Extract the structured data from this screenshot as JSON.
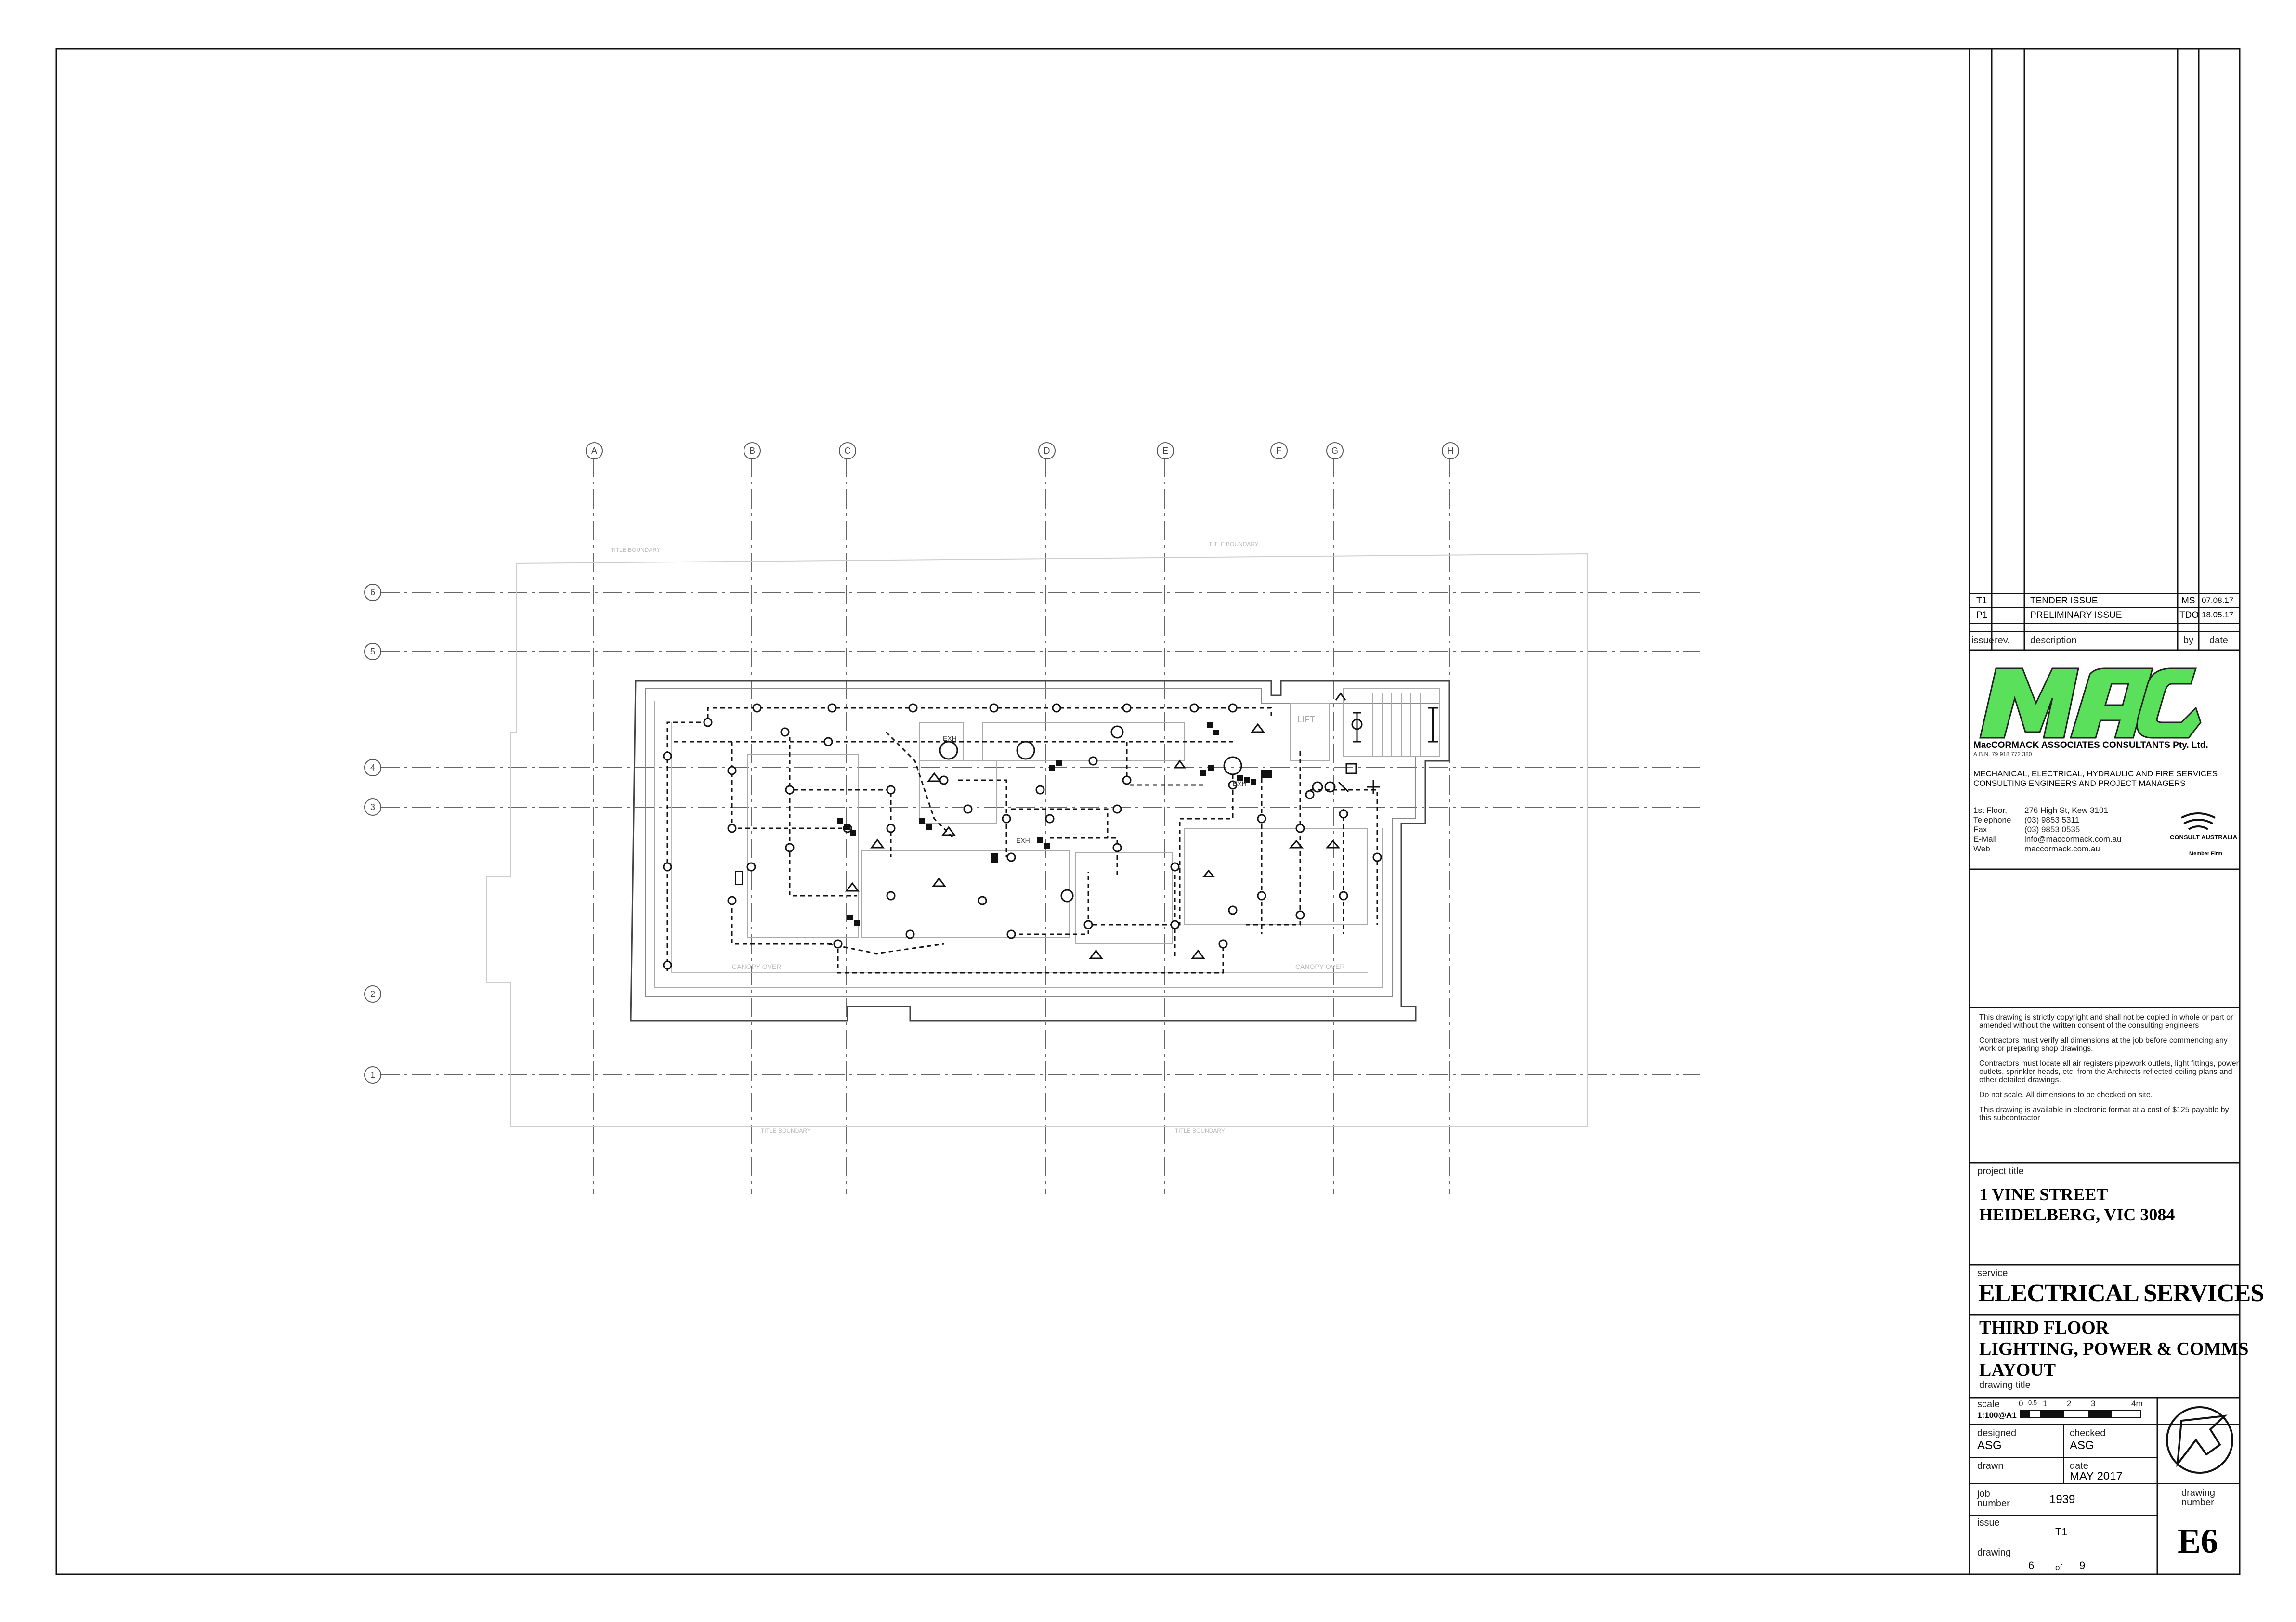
{
  "grid": {
    "columns": [
      "A",
      "B",
      "C",
      "D",
      "E",
      "F",
      "G",
      "H"
    ],
    "rows": [
      "6",
      "5",
      "4",
      "3",
      "2",
      "1"
    ]
  },
  "plan": {
    "boundary_label": "TITLE BOUNDARY",
    "room_labels": [
      "EXH",
      "EXH",
      "EXH",
      "LIFT",
      "CANOPY OVER",
      "CANOPY OVER"
    ]
  },
  "revisions": {
    "rows": [
      {
        "issue": "T1",
        "rev": "",
        "description": "TENDER ISSUE",
        "by": "MS",
        "date": "07.08.17"
      },
      {
        "issue": "P1",
        "rev": "",
        "description": "PRELIMINARY ISSUE",
        "by": "TDO",
        "date": "18.05.17"
      }
    ],
    "headers": {
      "issue": "issue",
      "rev": "rev.",
      "description": "description",
      "by": "by",
      "date": "date"
    }
  },
  "firm": {
    "logo_text": "mac",
    "name": "MacCORMACK ASSOCIATES CONSULTANTS Pty. Ltd.",
    "abn": "A.B.N. 79 918 772 380",
    "services_line1": "MECHANICAL, ELECTRICAL, HYDRAULIC AND FIRE SERVICES",
    "services_line2": "CONSULTING ENGINEERS AND PROJECT MANAGERS",
    "contacts": [
      {
        "label": "1st Floor,",
        "value": "276 High St, Kew 3101"
      },
      {
        "label": "Telephone",
        "value": "(03) 9853 5311"
      },
      {
        "label": "Fax",
        "value": "(03) 9853 0535"
      },
      {
        "label": "E-Mail",
        "value": "info@maccormack.com.au"
      },
      {
        "label": "Web",
        "value": "maccormack.com.au"
      }
    ],
    "membership_logo": "CONSULT AUSTRALIA",
    "membership_sub": "Member Firm"
  },
  "notes": [
    "This drawing is strictly copyright and shall not be copied in whole or part or amended without the written consent of the consulting engineers",
    "Contractors must verify all dimensions at the job before commencing any work or preparing shop drawings.",
    "Contractors must locate all air registers pipework outlets, light fittings, power outlets, sprinkler heads, etc. from the Architects reflected ceiling plans and other detailed drawings.",
    "Do not scale. All dimensions to be checked on site.",
    "This drawing is available in electronic format at a cost of $125 payable by this subcontractor"
  ],
  "project": {
    "label": "project title",
    "line1": "1 VINE STREET",
    "line2": "HEIDELBERG, VIC 3084"
  },
  "service": {
    "label": "service",
    "value": "ELECTRICAL SERVICES"
  },
  "drawing_title": {
    "line1": "THIRD FLOOR",
    "line2": "LIGHTING, POWER & COMMS",
    "line3": "LAYOUT",
    "label": "drawing title"
  },
  "scale": {
    "label": "scale",
    "value": "1:100@A1",
    "ticks": [
      "0",
      "0.5",
      "1",
      "2",
      "3",
      "4m"
    ]
  },
  "designed": {
    "label": "designed",
    "value": "ASG"
  },
  "checked": {
    "label": "checked",
    "value": "ASG"
  },
  "drawn": {
    "label": "drawn",
    "value": ""
  },
  "date": {
    "label": "date",
    "value": "MAY 2017"
  },
  "job": {
    "label_line1": "job",
    "label_line2": "number",
    "value": "1939"
  },
  "issue": {
    "label": "issue",
    "value": "T1"
  },
  "drawing_count": {
    "label": "drawing",
    "current": "6",
    "of_label": "of",
    "total": "9"
  },
  "drawing_number": {
    "label_line1": "drawing",
    "label_line2": "number",
    "value": "E6"
  }
}
